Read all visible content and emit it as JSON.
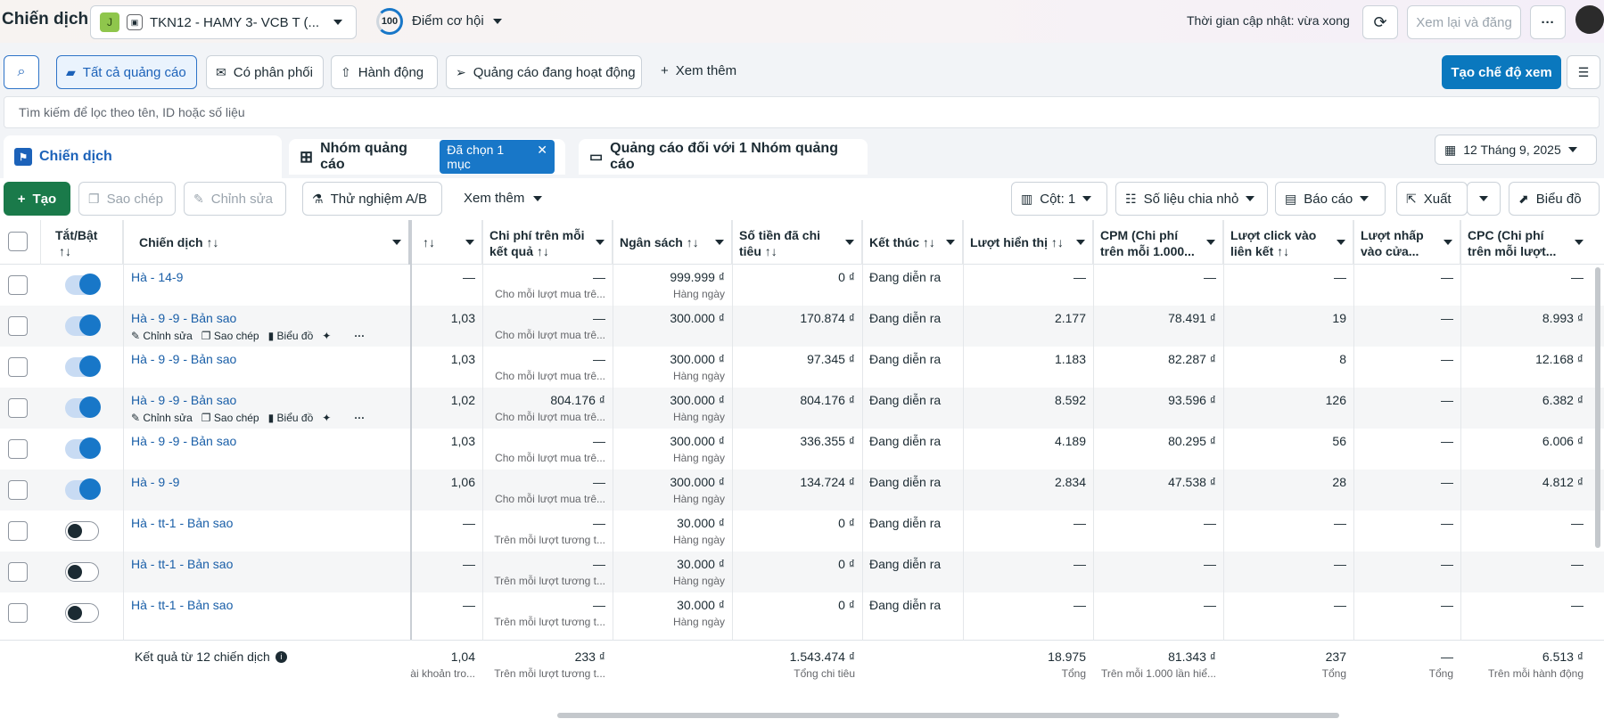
{
  "header": {
    "title": "Chiến dịch",
    "account_initial": "J",
    "account_name": "TKN12 - HAMY 3- VCB T (...",
    "score": "100",
    "score_label": "Điểm cơ hội",
    "update_time": "Thời gian cập nhật: vừa xong",
    "review_publish": "Xem lại và đăng"
  },
  "filters": {
    "all_ads": "Tất cả quảng cáo",
    "with_delivery": "Có phân phối",
    "actions": "Hành động",
    "active_ads": "Quảng cáo đang hoạt động",
    "more": "Xem thêm",
    "create_view": "Tạo chế độ xem"
  },
  "search": {
    "placeholder": "Tìm kiếm để lọc theo tên, ID hoặc số liệu"
  },
  "tabs": {
    "campaigns": "Chiến dịch",
    "adsets": "Nhóm quảng cáo",
    "selected": "Đã chọn 1 mục",
    "ads": "Quảng cáo đối với 1 Nhóm quảng cáo",
    "date": "12 Tháng 9, 2025"
  },
  "toolbar": {
    "create": "Tạo",
    "copy": "Sao chép",
    "edit": "Chỉnh sửa",
    "ab_test": "Thử nghiệm A/B",
    "more": "Xem thêm",
    "columns": "Cột: 1",
    "breakdown": "Số liệu chia nhỏ",
    "reports": "Báo cáo",
    "export": "Xuất",
    "charts": "Biểu đồ"
  },
  "columns": {
    "toggle": "Tắt/Bật",
    "toggle_sort": "↑↓",
    "campaign": "Chiến dịch ↑↓",
    "results_sort": "↑↓",
    "cost_per_result": "Chi phí trên mỗi kết quả ↑↓",
    "budget": "Ngân sách ↑↓",
    "spent": "Số tiền đã chi tiêu ↑↓",
    "ends": "Kết thúc ↑↓",
    "impressions": "Lượt hiển thị ↑↓",
    "cpm": "CPM (Chi phí trên mỗi 1.000...",
    "link_clicks": "Lượt click vào liên kết ↑↓",
    "store_clicks": "Lượt nhấp vào cửa...",
    "cpc": "CPC (Chi phí trên mỗi lượt..."
  },
  "row_actions": {
    "edit": "Chỉnh sửa",
    "copy": "Sao chép",
    "chart": "Biểu đồ"
  },
  "rows": [
    {
      "name": "Hà - 14-9",
      "on": true,
      "actions": false,
      "results": "—",
      "cpr": "—",
      "cpr_sub": "Cho mỗi lượt mua trê...",
      "budget": "999.999 ₫",
      "budget_sub": "Hàng ngày",
      "spent": "0 ₫",
      "ends": "Đang diễn ra",
      "impr": "—",
      "cpm": "—",
      "clicks": "—",
      "store": "—",
      "cpc": "—"
    },
    {
      "name": "Hà - 9 -9 - Bản sao",
      "on": true,
      "actions": true,
      "results": "1,03",
      "cpr": "—",
      "cpr_sub": "Cho mỗi lượt mua trê...",
      "budget": "300.000 ₫",
      "budget_sub": "",
      "spent": "170.874 ₫",
      "ends": "Đang diễn ra",
      "impr": "2.177",
      "cpm": "78.491 ₫",
      "clicks": "19",
      "store": "—",
      "cpc": "8.993 ₫"
    },
    {
      "name": "Hà - 9 -9 - Bản sao",
      "on": true,
      "actions": false,
      "results": "1,03",
      "cpr": "—",
      "cpr_sub": "Cho mỗi lượt mua trê...",
      "budget": "300.000 ₫",
      "budget_sub": "Hàng ngày",
      "spent": "97.345 ₫",
      "ends": "Đang diễn ra",
      "impr": "1.183",
      "cpm": "82.287 ₫",
      "clicks": "8",
      "store": "—",
      "cpc": "12.168 ₫"
    },
    {
      "name": "Hà - 9 -9 - Bản sao",
      "on": true,
      "actions": true,
      "results": "1,02",
      "cpr": "804.176 ₫",
      "cpr_sub": "Cho mỗi lượt mua trê...",
      "budget": "300.000 ₫",
      "budget_sub": "Hàng ngày",
      "spent": "804.176 ₫",
      "ends": "Đang diễn ra",
      "impr": "8.592",
      "cpm": "93.596 ₫",
      "clicks": "126",
      "store": "—",
      "cpc": "6.382 ₫"
    },
    {
      "name": "Hà - 9 -9 - Bản sao",
      "on": true,
      "actions": false,
      "results": "1,03",
      "cpr": "—",
      "cpr_sub": "Cho mỗi lượt mua trê...",
      "budget": "300.000 ₫",
      "budget_sub": "Hàng ngày",
      "spent": "336.355 ₫",
      "ends": "Đang diễn ra",
      "impr": "4.189",
      "cpm": "80.295 ₫",
      "clicks": "56",
      "store": "—",
      "cpc": "6.006 ₫"
    },
    {
      "name": "Hà - 9 -9",
      "on": true,
      "actions": false,
      "results": "1,06",
      "cpr": "—",
      "cpr_sub": "Cho mỗi lượt mua trê...",
      "budget": "300.000 ₫",
      "budget_sub": "Hàng ngày",
      "spent": "134.724 ₫",
      "ends": "Đang diễn ra",
      "impr": "2.834",
      "cpm": "47.538 ₫",
      "clicks": "28",
      "store": "—",
      "cpc": "4.812 ₫"
    },
    {
      "name": "Hà - tt-1 - Bản sao",
      "on": false,
      "actions": false,
      "results": "—",
      "cpr": "—",
      "cpr_sub": "Trên mỗi lượt tương t...",
      "budget": "30.000 ₫",
      "budget_sub": "Hàng ngày",
      "spent": "0 ₫",
      "ends": "Đang diễn ra",
      "impr": "—",
      "cpm": "—",
      "clicks": "—",
      "store": "—",
      "cpc": "—"
    },
    {
      "name": "Hà - tt-1 - Bản sao",
      "on": false,
      "actions": false,
      "results": "—",
      "cpr": "—",
      "cpr_sub": "Trên mỗi lượt tương t...",
      "budget": "30.000 ₫",
      "budget_sub": "Hàng ngày",
      "spent": "0 ₫",
      "ends": "Đang diễn ra",
      "impr": "—",
      "cpm": "—",
      "clicks": "—",
      "store": "—",
      "cpc": "—"
    },
    {
      "name": "Hà - tt-1 - Bản sao",
      "on": false,
      "actions": false,
      "results": "—",
      "cpr": "—",
      "cpr_sub": "Trên mỗi lượt tương t...",
      "budget": "30.000 ₫",
      "budget_sub": "Hàng ngày",
      "spent": "0 ₫",
      "ends": "Đang diễn ra",
      "impr": "—",
      "cpm": "—",
      "clicks": "—",
      "store": "—",
      "cpc": "—"
    }
  ],
  "footer": {
    "label": "Kết quả từ 12 chiến dịch",
    "results": "1,04",
    "results_sub": "ài khoản tro...",
    "cpr": "233 ₫",
    "cpr_sub": "Trên mỗi lượt tương t...",
    "spent": "1.543.474 ₫",
    "spent_sub": "Tổng chi tiêu",
    "impr": "18.975",
    "impr_sub": "Tổng",
    "cpm": "81.343 ₫",
    "cpm_sub": "Trên mỗi 1.000 lần hiể...",
    "clicks": "237",
    "clicks_sub": "Tổng",
    "store": "—",
    "store_sub": "Tổng",
    "cpc": "6.513 ₫",
    "cpc_sub": "Trên mỗi hành động"
  }
}
